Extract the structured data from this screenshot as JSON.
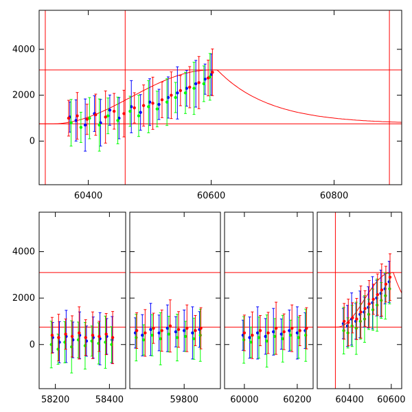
{
  "colors": {
    "axis": "#000000",
    "model": "#ff0000",
    "series_blue": "#0000ff",
    "series_green": "#00ff00",
    "series_red": "#ff0000"
  },
  "chart_data": [
    {
      "id": "top-panel",
      "type": "scatter",
      "title": "",
      "xlabel": "",
      "ylabel": "",
      "xlim": [
        60320,
        60910
      ],
      "ylim": [
        -1900,
        5700
      ],
      "xticks": [
        60400,
        60600,
        60800
      ],
      "yticks": [
        0,
        2000,
        4000
      ],
      "grid": false,
      "legend": "none",
      "model_levels": [
        750,
        3100
      ],
      "vlines": [
        60330,
        60460,
        60890
      ],
      "model_curve": {
        "base": 750,
        "peak": 3100,
        "rise_start": 60340,
        "rise_end": 60600,
        "plateau_end": 60610,
        "decay_tau": 85
      },
      "series": [
        {
          "name": "",
          "color": "series_blue",
          "points": [
            [
              60370,
              1050
            ],
            [
              60380,
              900
            ],
            [
              60395,
              700
            ],
            [
              60410,
              1200
            ],
            [
              60420,
              800
            ],
            [
              60435,
              1350
            ],
            [
              60450,
              1000
            ],
            [
              60470,
              1500
            ],
            [
              60485,
              1250
            ],
            [
              60500,
              1700
            ],
            [
              60515,
              1600
            ],
            [
              60530,
              1900
            ],
            [
              60545,
              2100
            ],
            [
              60560,
              2300
            ],
            [
              60575,
              2500
            ],
            [
              60590,
              2700
            ],
            [
              60600,
              2900
            ]
          ]
        },
        {
          "name": "",
          "color": "series_green",
          "points": [
            [
              60372,
              800
            ],
            [
              60388,
              600
            ],
            [
              60402,
              1000
            ],
            [
              60418,
              700
            ],
            [
              60432,
              1100
            ],
            [
              60448,
              900
            ],
            [
              60468,
              1300
            ],
            [
              60482,
              1100
            ],
            [
              60498,
              1500
            ],
            [
              60512,
              1400
            ],
            [
              60528,
              1700
            ],
            [
              60542,
              1900
            ],
            [
              60558,
              2100
            ],
            [
              60572,
              2300
            ],
            [
              60588,
              2500
            ],
            [
              60598,
              2800
            ]
          ]
        },
        {
          "name": "",
          "color": "series_red",
          "points": [
            [
              60368,
              1000
            ],
            [
              60382,
              1100
            ],
            [
              60398,
              950
            ],
            [
              60412,
              1150
            ],
            [
              60428,
              1050
            ],
            [
              60442,
              1300
            ],
            [
              60458,
              1200
            ],
            [
              60475,
              1450
            ],
            [
              60490,
              1550
            ],
            [
              60505,
              1650
            ],
            [
              60520,
              1800
            ],
            [
              60535,
              2000
            ],
            [
              60550,
              2200
            ],
            [
              60565,
              2350
            ],
            [
              60580,
              2550
            ],
            [
              60595,
              2750
            ],
            [
              60602,
              3000
            ]
          ]
        }
      ]
    },
    {
      "id": "bottom-panel-a",
      "type": "scatter",
      "title": "",
      "xlabel": "",
      "ylabel": "",
      "xlim": [
        58140,
        58460
      ],
      "ylim": [
        -1900,
        5700
      ],
      "xticks": [
        58200,
        58400
      ],
      "yticks": [
        0,
        2000,
        4000
      ],
      "grid": false,
      "legend": "none",
      "model_levels": [
        750,
        3100
      ],
      "series": [
        {
          "name": "",
          "color": "series_blue",
          "points": [
            [
              58190,
              300
            ],
            [
              58215,
              100
            ],
            [
              58240,
              350
            ],
            [
              58265,
              200
            ],
            [
              58290,
              400
            ],
            [
              58315,
              150
            ],
            [
              58340,
              300
            ],
            [
              58365,
              250
            ],
            [
              58390,
              350
            ],
            [
              58410,
              200
            ]
          ]
        },
        {
          "name": "",
          "color": "series_green",
          "points": [
            [
              58185,
              0
            ],
            [
              58210,
              -200
            ],
            [
              58235,
              100
            ],
            [
              58260,
              -100
            ],
            [
              58285,
              200
            ],
            [
              58310,
              -50
            ],
            [
              58335,
              150
            ],
            [
              58360,
              50
            ],
            [
              58385,
              100
            ],
            [
              58408,
              0
            ]
          ]
        },
        {
          "name": "",
          "color": "series_red",
          "points": [
            [
              58188,
              400
            ],
            [
              58212,
              300
            ],
            [
              58238,
              450
            ],
            [
              58262,
              350
            ],
            [
              58288,
              500
            ],
            [
              58312,
              300
            ],
            [
              58338,
              400
            ],
            [
              58362,
              350
            ],
            [
              58388,
              450
            ],
            [
              58412,
              300
            ]
          ]
        }
      ]
    },
    {
      "id": "bottom-panel-b",
      "type": "scatter",
      "title": "",
      "xlabel": "",
      "ylabel": "",
      "xlim": [
        59605,
        59930
      ],
      "ylim": [
        -1900,
        5700
      ],
      "xticks": [
        59800
      ],
      "yticks": [
        0,
        2000,
        4000
      ],
      "grid": false,
      "legend": "none",
      "model_levels": [
        750,
        3100
      ],
      "series": [
        {
          "name": "",
          "color": "series_blue",
          "points": [
            [
              59625,
              500
            ],
            [
              59650,
              400
            ],
            [
              59680,
              650
            ],
            [
              59710,
              500
            ],
            [
              59740,
              700
            ],
            [
              59770,
              550
            ],
            [
              59800,
              600
            ],
            [
              59830,
              500
            ],
            [
              59855,
              650
            ]
          ]
        },
        {
          "name": "",
          "color": "series_green",
          "points": [
            [
              59628,
              300
            ],
            [
              59655,
              200
            ],
            [
              59685,
              400
            ],
            [
              59715,
              250
            ],
            [
              59745,
              450
            ],
            [
              59775,
              300
            ],
            [
              59805,
              350
            ],
            [
              59835,
              250
            ],
            [
              59858,
              400
            ]
          ]
        },
        {
          "name": "",
          "color": "series_red",
          "points": [
            [
              59630,
              600
            ],
            [
              59660,
              500
            ],
            [
              59690,
              700
            ],
            [
              59720,
              600
            ],
            [
              59750,
              800
            ],
            [
              59780,
              650
            ],
            [
              59810,
              700
            ],
            [
              59840,
              600
            ],
            [
              59860,
              700
            ]
          ]
        }
      ]
    },
    {
      "id": "bottom-panel-c",
      "type": "scatter",
      "title": "",
      "xlabel": "",
      "ylabel": "",
      "xlim": [
        59925,
        60260
      ],
      "ylim": [
        -1900,
        5700
      ],
      "xticks": [
        60000,
        60200
      ],
      "yticks": [
        0,
        2000,
        4000
      ],
      "grid": false,
      "legend": "none",
      "model_levels": [
        750,
        3100
      ],
      "series": [
        {
          "name": "",
          "color": "series_blue",
          "points": [
            [
              59995,
              400
            ],
            [
              60020,
              300
            ],
            [
              60050,
              500
            ],
            [
              60080,
              350
            ],
            [
              60110,
              550
            ],
            [
              60140,
              450
            ],
            [
              60170,
              600
            ],
            [
              60200,
              500
            ],
            [
              60230,
              600
            ]
          ]
        },
        {
          "name": "",
          "color": "series_green",
          "points": [
            [
              59998,
              200
            ],
            [
              60025,
              100
            ],
            [
              60055,
              300
            ],
            [
              60085,
              150
            ],
            [
              60115,
              350
            ],
            [
              60145,
              250
            ],
            [
              60175,
              400
            ],
            [
              60205,
              300
            ],
            [
              60232,
              400
            ]
          ]
        },
        {
          "name": "",
          "color": "series_red",
          "points": [
            [
              60000,
              500
            ],
            [
              60030,
              400
            ],
            [
              60060,
              600
            ],
            [
              60090,
              500
            ],
            [
              60120,
              700
            ],
            [
              60150,
              550
            ],
            [
              60180,
              700
            ],
            [
              60210,
              600
            ],
            [
              60235,
              700
            ]
          ]
        }
      ]
    },
    {
      "id": "bottom-panel-d",
      "type": "scatter",
      "title": "",
      "xlabel": "",
      "ylabel": "",
      "xlim": [
        60245,
        60650
      ],
      "ylim": [
        -1900,
        5700
      ],
      "xticks": [
        60400,
        60600
      ],
      "yticks": [
        0,
        2000,
        4000
      ],
      "grid": false,
      "legend": "none",
      "model_levels": [
        750,
        3100
      ],
      "vlines": [
        60332
      ],
      "model_curve": {
        "base": 750,
        "peak": 3100,
        "rise_start": 60340,
        "rise_end": 60600,
        "plateau_end": 60610,
        "decay_tau": 85
      },
      "series": [
        {
          "name": "",
          "color": "series_blue",
          "points": [
            [
              60370,
              900
            ],
            [
              60390,
              800
            ],
            [
              60410,
              1100
            ],
            [
              60430,
              1000
            ],
            [
              60450,
              1300
            ],
            [
              60470,
              1400
            ],
            [
              60490,
              1600
            ],
            [
              60510,
              1800
            ],
            [
              60530,
              2000
            ],
            [
              60550,
              2200
            ],
            [
              60570,
              2400
            ],
            [
              60590,
              2700
            ]
          ]
        },
        {
          "name": "",
          "color": "series_green",
          "points": [
            [
              60372,
              600
            ],
            [
              60392,
              500
            ],
            [
              60412,
              800
            ],
            [
              60432,
              700
            ],
            [
              60452,
              1000
            ],
            [
              60472,
              1100
            ],
            [
              60492,
              1300
            ],
            [
              60512,
              1500
            ],
            [
              60532,
              1700
            ],
            [
              60552,
              1900
            ],
            [
              60572,
              2100
            ],
            [
              60592,
              2400
            ]
          ]
        },
        {
          "name": "",
          "color": "series_red",
          "points": [
            [
              60374,
              1000
            ],
            [
              60394,
              950
            ],
            [
              60414,
              1150
            ],
            [
              60434,
              1100
            ],
            [
              60454,
              1400
            ],
            [
              60474,
              1550
            ],
            [
              60494,
              1750
            ],
            [
              60514,
              1950
            ],
            [
              60534,
              2150
            ],
            [
              60554,
              2350
            ],
            [
              60574,
              2600
            ],
            [
              60594,
              2900
            ]
          ]
        }
      ]
    }
  ]
}
